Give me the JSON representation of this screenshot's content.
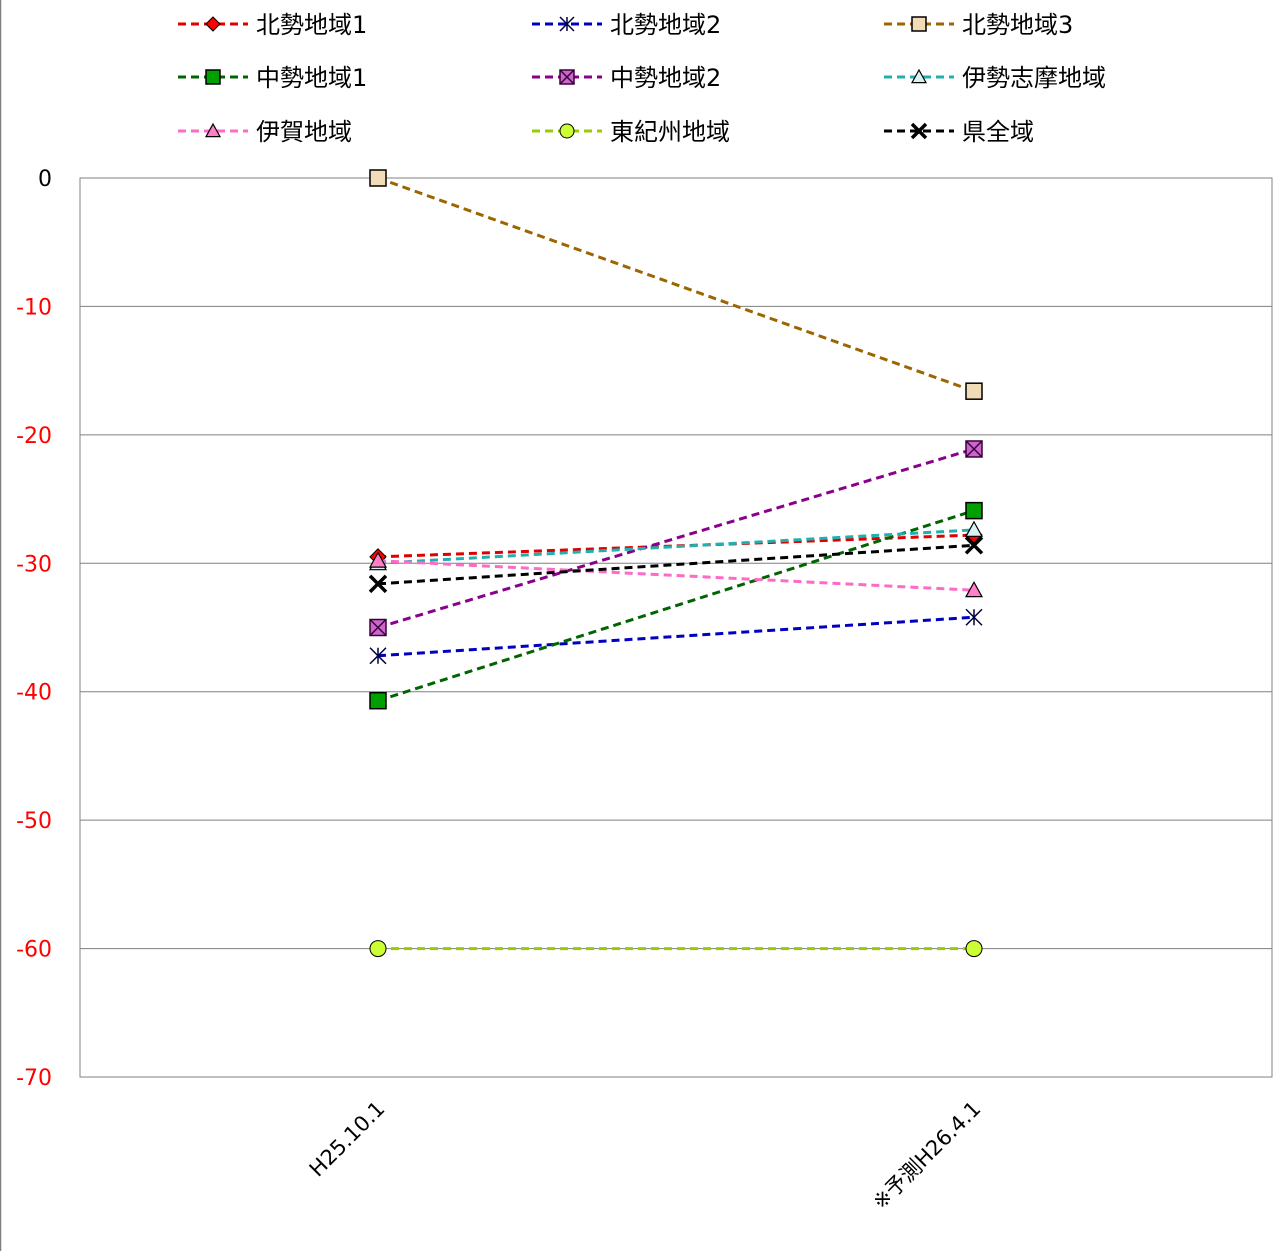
{
  "chart_data": {
    "type": "line",
    "categories": [
      "H25.10.1",
      "※予測H26.4.1"
    ],
    "ylim": [
      -70,
      0
    ],
    "yticks": [
      0,
      -10,
      -20,
      -30,
      -40,
      -50,
      -60,
      -70
    ],
    "ytick_labels": [
      "0",
      "-10",
      "-20",
      "-30",
      "-40",
      "-50",
      "-60",
      "-70"
    ],
    "grid": true,
    "legend_position": "top",
    "negative_tick_color": "#ff0000",
    "series": [
      {
        "name": "北勢地域1",
        "values": [
          -29.5,
          -27.8
        ],
        "color": "#e00000",
        "marker": "diamond",
        "marker_fill": "#ff0000"
      },
      {
        "name": "北勢地域2",
        "values": [
          -37.2,
          -34.2
        ],
        "color": "#0000c0",
        "marker": "asterisk",
        "marker_fill": "#0000c0"
      },
      {
        "name": "北勢地域3",
        "values": [
          0.0,
          -16.6
        ],
        "color": "#9c6500",
        "marker": "square",
        "marker_fill": "#f2dcb8"
      },
      {
        "name": "中勢地域1",
        "values": [
          -40.7,
          -25.9
        ],
        "color": "#006400",
        "marker": "square",
        "marker_fill": "#00a000"
      },
      {
        "name": "中勢地域2",
        "values": [
          -35.0,
          -21.1
        ],
        "color": "#8b008b",
        "marker": "square-x",
        "marker_fill": "#cc66cc"
      },
      {
        "name": "伊勢志摩地域",
        "values": [
          -30.0,
          -27.4
        ],
        "color": "#20b0b0",
        "marker": "triangle",
        "marker_fill": "#d9f2f2"
      },
      {
        "name": "伊賀地域",
        "values": [
          -29.8,
          -32.1
        ],
        "color": "#ff69c8",
        "marker": "triangle",
        "marker_fill": "#ff80c8"
      },
      {
        "name": "東紀州地域",
        "values": [
          -60.0,
          -60.0
        ],
        "color": "#99cc00",
        "marker": "circle",
        "marker_fill": "#ccff33"
      },
      {
        "name": "県全域",
        "values": [
          -31.6,
          -28.6
        ],
        "color": "#000000",
        "marker": "x",
        "marker_fill": "#000000"
      }
    ]
  }
}
